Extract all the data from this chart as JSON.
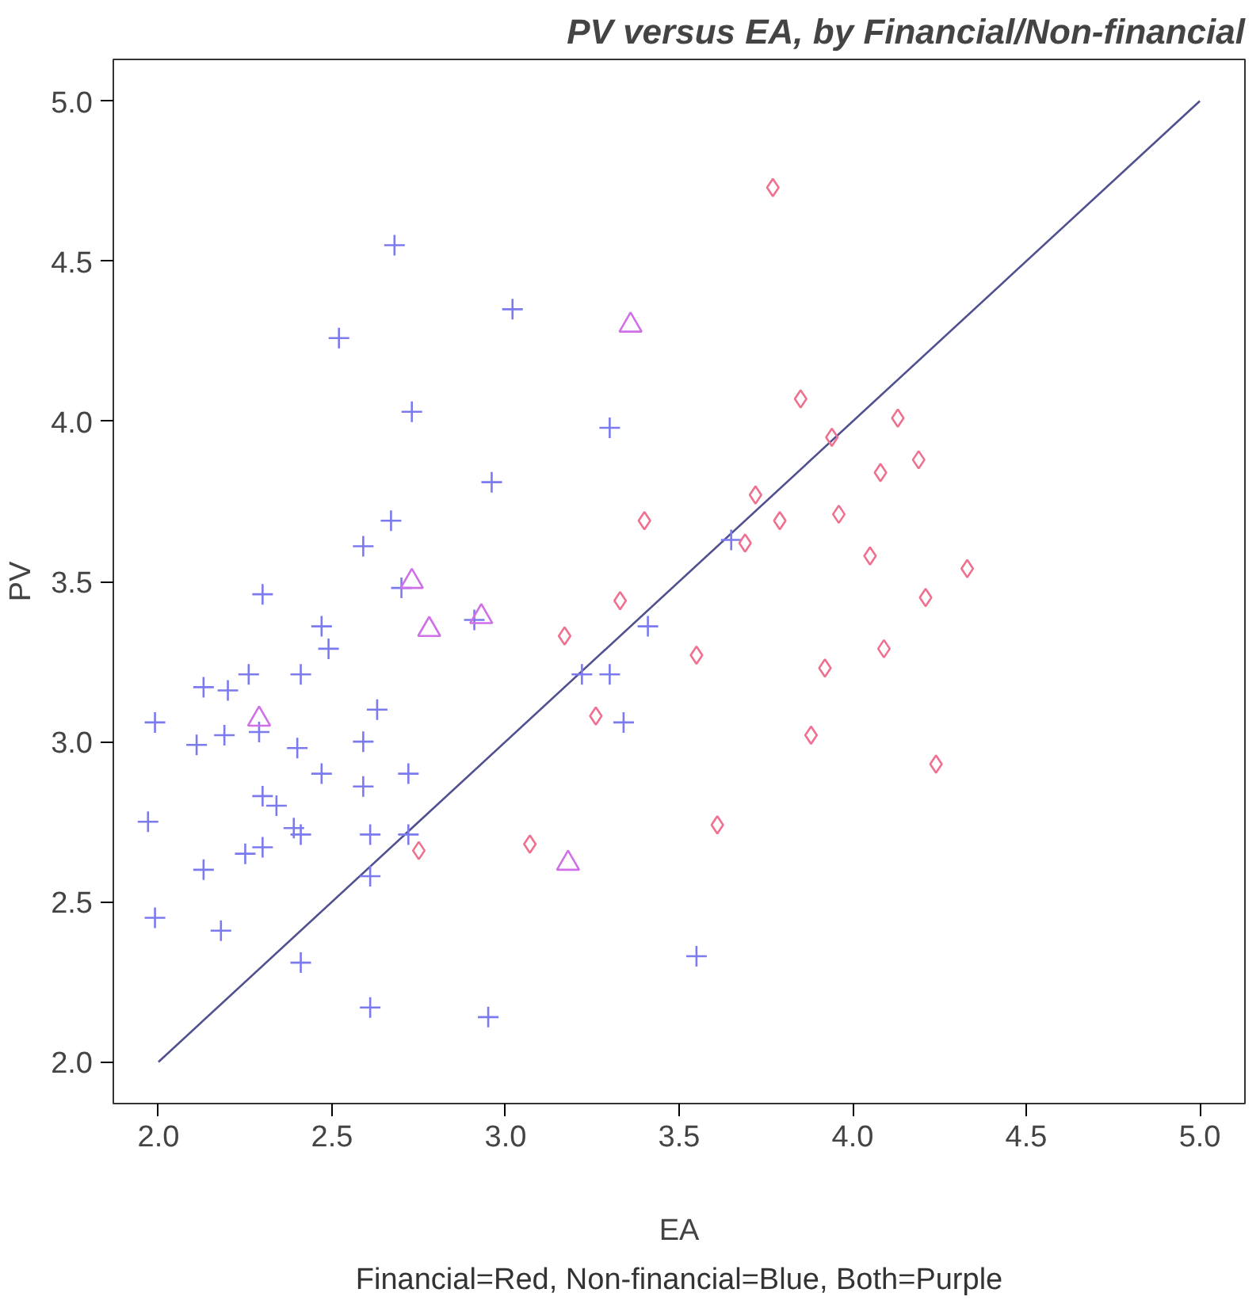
{
  "chart_data": {
    "type": "scatter",
    "title": "PV versus EA, by Financial/Non-financial",
    "xlabel": "EA",
    "ylabel": "PV",
    "xlim": [
      1.87,
      5.13
    ],
    "ylim": [
      1.87,
      5.13
    ],
    "xticks": [
      {
        "value": 2,
        "label": "2.0"
      },
      2.5,
      {
        "value": 3,
        "label": "3.0"
      },
      3.5,
      {
        "value": 4,
        "label": "4.0"
      },
      4.5,
      {
        "value": 5,
        "label": "5.0"
      }
    ],
    "yticks": [
      {
        "value": 2,
        "label": "2.0"
      },
      2.5,
      {
        "value": 3,
        "label": "3.0"
      },
      3.5,
      {
        "value": 4,
        "label": "4.0"
      },
      4.5,
      {
        "value": 5,
        "label": "5.0"
      }
    ],
    "grid": false,
    "annotations": [
      "Financial=Red, Non-financial=Blue, Both=Purple"
    ],
    "series": [
      {
        "type": "line",
        "color": "#505090",
        "marker": "none",
        "line_style": "solid",
        "x": [
          2.0,
          5.0
        ],
        "values": [
          2.0,
          5.0
        ]
      },
      {
        "color": "#7b7bef",
        "marker": "cross",
        "x": [
          2.68,
          3.02,
          2.52,
          2.73,
          3.3,
          2.96,
          2.67,
          3.65,
          2.59,
          2.7,
          2.3,
          3.41,
          2.47,
          2.91,
          2.49,
          2.26,
          2.41,
          3.22,
          3.3,
          2.13,
          2.2,
          2.63,
          1.99,
          3.34,
          2.29,
          2.19,
          2.11,
          2.59,
          2.4,
          2.47,
          2.72,
          2.59,
          2.3,
          2.34,
          2.39,
          2.41,
          2.61,
          1.97,
          2.72,
          2.3,
          2.25,
          2.13,
          2.61,
          1.99,
          2.18,
          2.41,
          3.55,
          2.61,
          2.95
        ],
        "values": [
          4.55,
          4.35,
          4.26,
          4.03,
          3.98,
          3.81,
          3.69,
          3.63,
          3.61,
          3.48,
          3.46,
          3.36,
          3.36,
          3.38,
          3.29,
          3.21,
          3.21,
          3.21,
          3.21,
          3.17,
          3.16,
          3.1,
          3.06,
          3.06,
          3.03,
          3.02,
          2.99,
          3.0,
          2.98,
          2.9,
          2.9,
          2.86,
          2.83,
          2.8,
          2.73,
          2.71,
          2.71,
          2.75,
          2.71,
          2.67,
          2.65,
          2.6,
          2.58,
          2.45,
          2.41,
          2.31,
          2.33,
          2.17,
          2.14
        ]
      },
      {
        "color": "#f07090",
        "marker": "diamond",
        "x": [
          3.77,
          3.85,
          4.13,
          3.94,
          4.19,
          4.08,
          3.72,
          3.96,
          3.4,
          3.79,
          3.69,
          4.05,
          4.33,
          3.33,
          4.21,
          3.17,
          4.09,
          3.55,
          3.92,
          3.26,
          3.88,
          4.24,
          3.61,
          3.07,
          2.75
        ],
        "values": [
          4.73,
          4.07,
          4.01,
          3.95,
          3.88,
          3.84,
          3.77,
          3.71,
          3.69,
          3.69,
          3.62,
          3.58,
          3.54,
          3.44,
          3.45,
          3.33,
          3.29,
          3.27,
          3.23,
          3.08,
          3.02,
          2.93,
          2.74,
          2.68,
          2.66
        ]
      },
      {
        "color": "#d070e8",
        "marker": "triangle",
        "x": [
          3.36,
          2.73,
          2.78,
          2.93,
          2.29,
          3.18
        ],
        "values": [
          4.3,
          3.5,
          3.35,
          3.39,
          3.07,
          2.62
        ]
      }
    ]
  }
}
